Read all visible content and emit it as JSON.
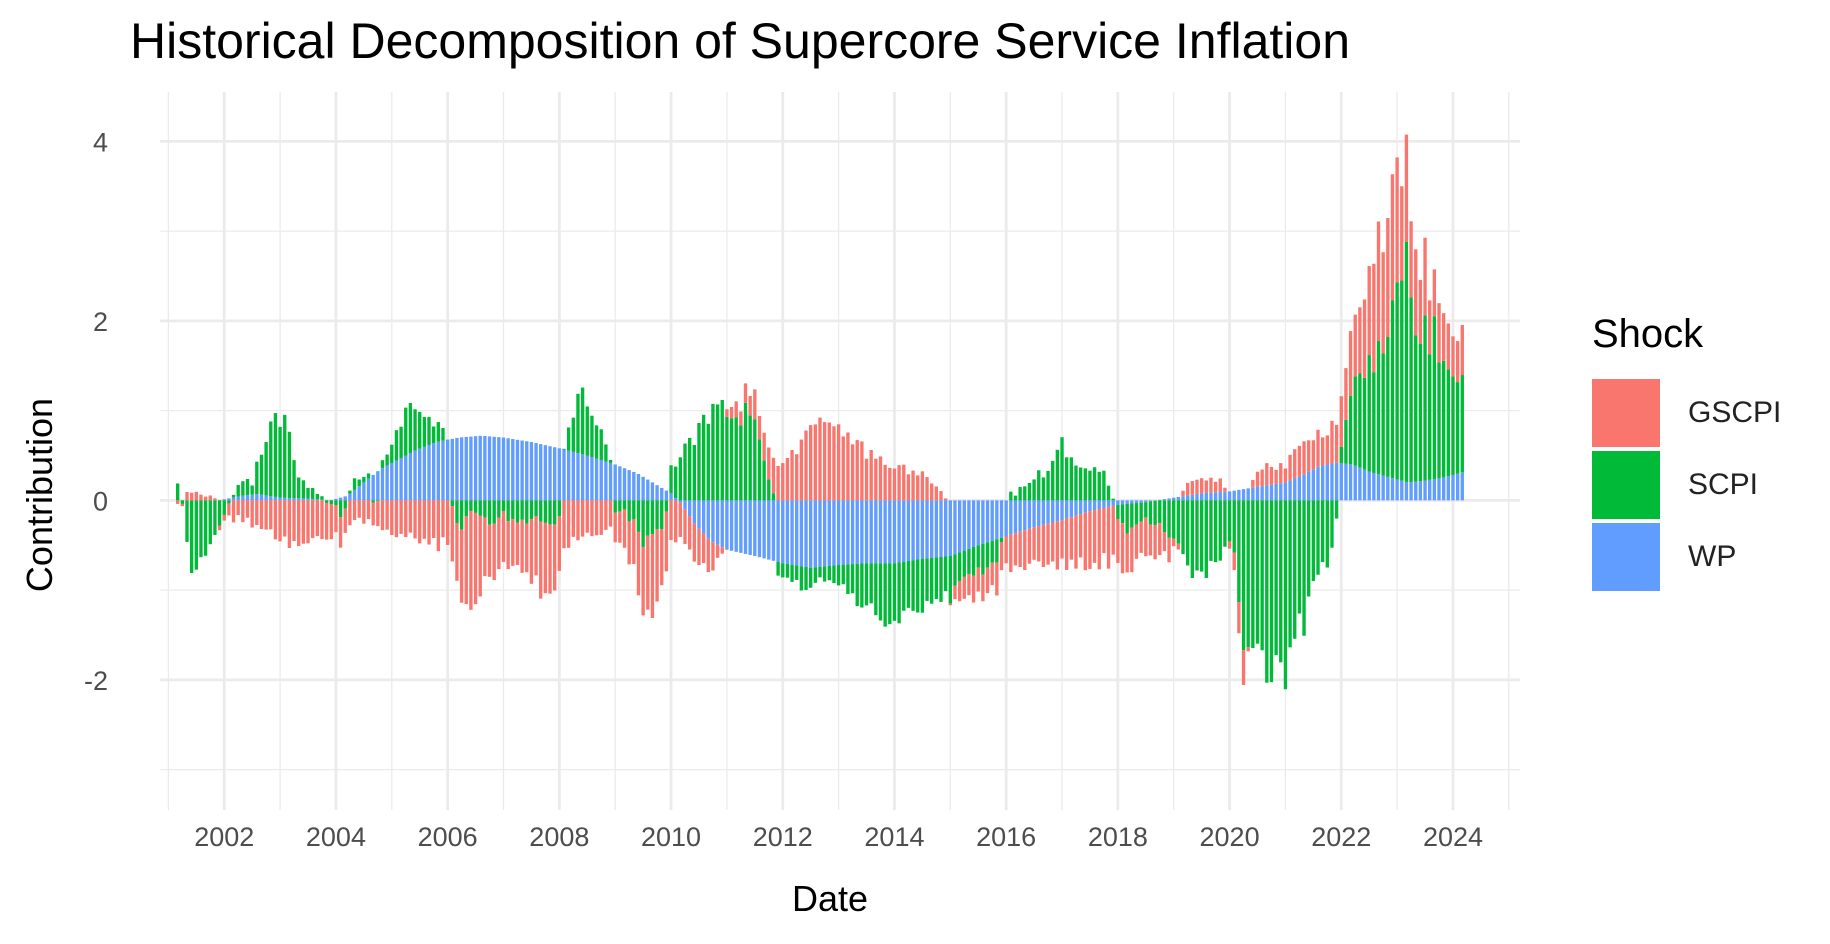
{
  "chart_data": {
    "type": "bar",
    "stacked": true,
    "title": "Historical Decomposition of Supercore Service Inflation",
    "xlabel": "Date",
    "ylabel": "Contribution",
    "legend": {
      "title": "Shock",
      "position": "right"
    },
    "xlim": [
      2000.85,
      2025.2
    ],
    "ylim": [
      -3.45,
      4.55
    ],
    "x_ticks": [
      2002,
      2004,
      2006,
      2008,
      2010,
      2012,
      2014,
      2016,
      2018,
      2020,
      2022,
      2024
    ],
    "x_tick_labels": [
      "2002",
      "2004",
      "2006",
      "2008",
      "2010",
      "2012",
      "2014",
      "2016",
      "2018",
      "2020",
      "2022",
      "2024"
    ],
    "y_ticks": [
      -2,
      0,
      2,
      4
    ],
    "y_tick_labels": [
      "-2",
      "0",
      "2",
      "4"
    ],
    "grid": true,
    "bar_frequency": "monthly",
    "x_start": "2001-03",
    "x_end": "2024-03",
    "series": [
      {
        "name": "GSCPI",
        "color": "#F8766D",
        "anchors": [
          [
            2001.2,
            0.02
          ],
          [
            2001.5,
            0.05
          ],
          [
            2001.9,
            0.02
          ],
          [
            2002.1,
            -0.2
          ],
          [
            2002.5,
            -0.25
          ],
          [
            2002.8,
            -0.35
          ],
          [
            2003.2,
            -0.5
          ],
          [
            2003.6,
            -0.45
          ],
          [
            2004.0,
            -0.35
          ],
          [
            2004.5,
            -0.2
          ],
          [
            2005.0,
            -0.35
          ],
          [
            2005.5,
            -0.45
          ],
          [
            2006.0,
            -0.5
          ],
          [
            2006.2,
            -0.8
          ],
          [
            2006.4,
            -1.1
          ],
          [
            2006.7,
            -0.6
          ],
          [
            2007.0,
            -0.5
          ],
          [
            2007.3,
            -0.5
          ],
          [
            2007.5,
            -0.65
          ],
          [
            2007.8,
            -0.8
          ],
          [
            2008.0,
            -0.7
          ],
          [
            2008.3,
            -0.45
          ],
          [
            2008.7,
            -0.35
          ],
          [
            2009.0,
            -0.3
          ],
          [
            2009.3,
            -0.45
          ],
          [
            2009.5,
            -0.75
          ],
          [
            2009.7,
            -1.05
          ],
          [
            2009.9,
            -0.6
          ],
          [
            2010.2,
            -0.35
          ],
          [
            2010.5,
            -0.45
          ],
          [
            2010.8,
            -0.25
          ],
          [
            2011.0,
            0.1
          ],
          [
            2011.3,
            0.15
          ],
          [
            2011.5,
            0.3
          ],
          [
            2011.7,
            0.3
          ],
          [
            2012.0,
            0.4
          ],
          [
            2012.3,
            0.55
          ],
          [
            2012.5,
            0.75
          ],
          [
            2012.7,
            0.9
          ],
          [
            2012.9,
            0.75
          ],
          [
            2013.2,
            0.7
          ],
          [
            2013.5,
            0.55
          ],
          [
            2013.8,
            0.45
          ],
          [
            2014.0,
            0.4
          ],
          [
            2014.3,
            0.3
          ],
          [
            2014.6,
            0.25
          ],
          [
            2014.9,
            0.1
          ],
          [
            2015.1,
            -0.15
          ],
          [
            2015.3,
            -0.25
          ],
          [
            2015.5,
            -0.3
          ],
          [
            2015.8,
            -0.3
          ],
          [
            2016.0,
            -0.35
          ],
          [
            2016.3,
            -0.4
          ],
          [
            2016.6,
            -0.45
          ],
          [
            2016.9,
            -0.5
          ],
          [
            2017.2,
            -0.55
          ],
          [
            2017.5,
            -0.6
          ],
          [
            2017.8,
            -0.6
          ],
          [
            2018.0,
            -0.55
          ],
          [
            2018.3,
            -0.45
          ],
          [
            2018.6,
            -0.35
          ],
          [
            2018.9,
            -0.25
          ],
          [
            2019.2,
            0.1
          ],
          [
            2019.5,
            0.2
          ],
          [
            2019.8,
            0.15
          ],
          [
            2020.0,
            -0.05
          ],
          [
            2020.1,
            -0.25
          ],
          [
            2020.25,
            -0.35
          ],
          [
            2020.4,
            0.1
          ],
          [
            2020.6,
            0.2
          ],
          [
            2020.8,
            0.2
          ],
          [
            2021.0,
            0.2
          ],
          [
            2021.2,
            0.3
          ],
          [
            2021.5,
            0.35
          ],
          [
            2021.8,
            0.4
          ],
          [
            2022.0,
            0.55
          ],
          [
            2022.2,
            0.75
          ],
          [
            2022.4,
            0.9
          ],
          [
            2022.6,
            1.1
          ],
          [
            2022.8,
            1.3
          ],
          [
            2023.0,
            1.35
          ],
          [
            2023.2,
            1.05
          ],
          [
            2023.4,
            0.85
          ],
          [
            2023.6,
            0.65
          ],
          [
            2023.8,
            0.55
          ],
          [
            2024.0,
            0.45
          ],
          [
            2024.2,
            0.5
          ]
        ]
      },
      {
        "name": "SCPI",
        "color": "#00BA38",
        "anchors": [
          [
            2001.2,
            0.2
          ],
          [
            2001.35,
            -0.6
          ],
          [
            2001.5,
            -0.8
          ],
          [
            2001.7,
            -0.5
          ],
          [
            2001.9,
            -0.3
          ],
          [
            2002.1,
            0.0
          ],
          [
            2002.3,
            0.2
          ],
          [
            2002.5,
            0.1
          ],
          [
            2002.7,
            0.6
          ],
          [
            2002.9,
            0.85
          ],
          [
            2003.1,
            0.8
          ],
          [
            2003.3,
            0.3
          ],
          [
            2003.6,
            0.1
          ],
          [
            2003.9,
            0.0
          ],
          [
            2004.1,
            -0.2
          ],
          [
            2004.3,
            0.1
          ],
          [
            2004.6,
            0.0
          ],
          [
            2004.9,
            0.1
          ],
          [
            2005.1,
            0.35
          ],
          [
            2005.3,
            0.5
          ],
          [
            2005.5,
            0.35
          ],
          [
            2005.8,
            0.2
          ],
          [
            2006.0,
            0.05
          ],
          [
            2006.2,
            -0.3
          ],
          [
            2006.5,
            -0.1
          ],
          [
            2006.8,
            -0.25
          ],
          [
            2007.0,
            -0.15
          ],
          [
            2007.3,
            -0.25
          ],
          [
            2007.6,
            -0.2
          ],
          [
            2007.8,
            -0.3
          ],
          [
            2008.0,
            -0.2
          ],
          [
            2008.2,
            0.3
          ],
          [
            2008.4,
            0.7
          ],
          [
            2008.6,
            0.45
          ],
          [
            2008.8,
            0.3
          ],
          [
            2009.0,
            -0.1
          ],
          [
            2009.3,
            -0.2
          ],
          [
            2009.5,
            -0.45
          ],
          [
            2009.7,
            -0.45
          ],
          [
            2009.9,
            -0.2
          ],
          [
            2010.0,
            0.3
          ],
          [
            2010.2,
            0.5
          ],
          [
            2010.4,
            0.7
          ],
          [
            2010.6,
            0.85
          ],
          [
            2010.8,
            0.95
          ],
          [
            2011.0,
            1.1
          ],
          [
            2011.2,
            1.05
          ],
          [
            2011.5,
            0.8
          ],
          [
            2011.7,
            0.4
          ],
          [
            2011.9,
            -0.1
          ],
          [
            2012.1,
            -0.1
          ],
          [
            2012.4,
            -0.3
          ],
          [
            2012.7,
            -0.15
          ],
          [
            2012.9,
            -0.15
          ],
          [
            2013.2,
            -0.35
          ],
          [
            2013.5,
            -0.5
          ],
          [
            2013.8,
            -0.65
          ],
          [
            2014.0,
            -0.7
          ],
          [
            2014.2,
            -0.5
          ],
          [
            2014.5,
            -0.55
          ],
          [
            2014.8,
            -0.45
          ],
          [
            2015.0,
            -0.45
          ],
          [
            2015.2,
            -0.3
          ],
          [
            2015.5,
            -0.3
          ],
          [
            2015.8,
            -0.25
          ],
          [
            2016.0,
            0.0
          ],
          [
            2016.2,
            0.1
          ],
          [
            2016.5,
            0.25
          ],
          [
            2016.8,
            0.35
          ],
          [
            2017.0,
            0.6
          ],
          [
            2017.2,
            0.4
          ],
          [
            2017.5,
            0.35
          ],
          [
            2017.8,
            0.3
          ],
          [
            2018.0,
            -0.2
          ],
          [
            2018.2,
            -0.3
          ],
          [
            2018.5,
            -0.2
          ],
          [
            2018.8,
            -0.3
          ],
          [
            2019.0,
            -0.45
          ],
          [
            2019.3,
            -0.75
          ],
          [
            2019.6,
            -0.75
          ],
          [
            2019.8,
            -0.65
          ],
          [
            2020.0,
            -0.55
          ],
          [
            2020.1,
            -0.7
          ],
          [
            2020.25,
            -1.7
          ],
          [
            2020.4,
            -1.9
          ],
          [
            2020.6,
            -1.85
          ],
          [
            2020.8,
            -1.9
          ],
          [
            2021.0,
            -1.8
          ],
          [
            2021.2,
            -1.5
          ],
          [
            2021.4,
            -1.2
          ],
          [
            2021.6,
            -0.85
          ],
          [
            2021.8,
            -0.7
          ],
          [
            2021.9,
            -0.3
          ],
          [
            2022.0,
            0.2
          ],
          [
            2022.2,
            0.8
          ],
          [
            2022.4,
            1.0
          ],
          [
            2022.6,
            1.35
          ],
          [
            2022.8,
            1.6
          ],
          [
            2023.0,
            2.1
          ],
          [
            2023.2,
            2.35
          ],
          [
            2023.4,
            1.6
          ],
          [
            2023.6,
            1.7
          ],
          [
            2023.8,
            1.35
          ],
          [
            2024.0,
            1.2
          ],
          [
            2024.2,
            1.05
          ]
        ]
      },
      {
        "name": "WP",
        "color": "#619CFF",
        "anchors": [
          [
            2001.2,
            0.0
          ],
          [
            2001.9,
            0.0
          ],
          [
            2002.3,
            0.05
          ],
          [
            2002.6,
            0.07
          ],
          [
            2003.0,
            0.03
          ],
          [
            2003.5,
            0.02
          ],
          [
            2003.9,
            0.0
          ],
          [
            2004.2,
            0.05
          ],
          [
            2004.5,
            0.2
          ],
          [
            2004.8,
            0.35
          ],
          [
            2005.1,
            0.45
          ],
          [
            2005.4,
            0.55
          ],
          [
            2005.8,
            0.65
          ],
          [
            2006.2,
            0.7
          ],
          [
            2006.6,
            0.72
          ],
          [
            2007.0,
            0.7
          ],
          [
            2007.5,
            0.65
          ],
          [
            2008.0,
            0.58
          ],
          [
            2008.5,
            0.5
          ],
          [
            2009.0,
            0.4
          ],
          [
            2009.4,
            0.3
          ],
          [
            2009.8,
            0.15
          ],
          [
            2010.0,
            0.08
          ],
          [
            2010.2,
            -0.05
          ],
          [
            2010.4,
            -0.25
          ],
          [
            2010.7,
            -0.45
          ],
          [
            2011.0,
            -0.55
          ],
          [
            2011.5,
            -0.62
          ],
          [
            2012.0,
            -0.7
          ],
          [
            2012.5,
            -0.75
          ],
          [
            2013.0,
            -0.72
          ],
          [
            2013.5,
            -0.7
          ],
          [
            2014.0,
            -0.7
          ],
          [
            2014.5,
            -0.65
          ],
          [
            2015.0,
            -0.62
          ],
          [
            2015.5,
            -0.5
          ],
          [
            2016.0,
            -0.4
          ],
          [
            2016.5,
            -0.3
          ],
          [
            2017.0,
            -0.22
          ],
          [
            2017.5,
            -0.12
          ],
          [
            2018.0,
            -0.05
          ],
          [
            2018.5,
            -0.02
          ],
          [
            2019.0,
            0.03
          ],
          [
            2019.5,
            0.08
          ],
          [
            2020.0,
            0.1
          ],
          [
            2020.5,
            0.15
          ],
          [
            2021.0,
            0.2
          ],
          [
            2021.3,
            0.28
          ],
          [
            2021.6,
            0.38
          ],
          [
            2021.9,
            0.42
          ],
          [
            2022.2,
            0.4
          ],
          [
            2022.5,
            0.32
          ],
          [
            2022.9,
            0.25
          ],
          [
            2023.2,
            0.2
          ],
          [
            2023.5,
            0.22
          ],
          [
            2023.8,
            0.25
          ],
          [
            2024.1,
            0.3
          ],
          [
            2024.2,
            0.32
          ]
        ]
      }
    ]
  }
}
